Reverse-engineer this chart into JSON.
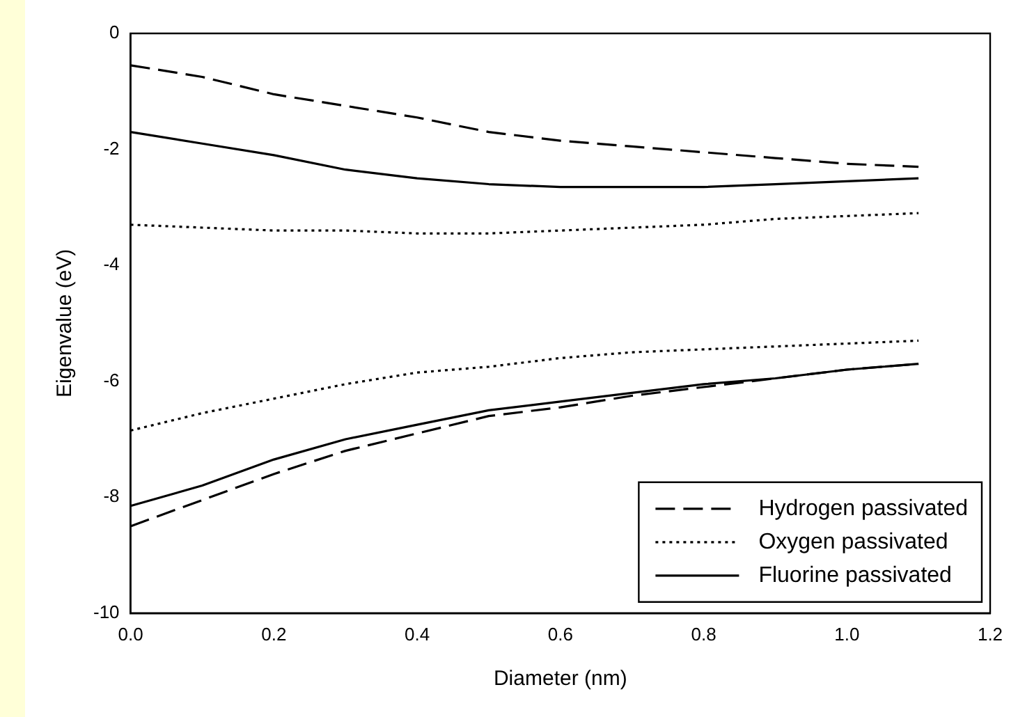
{
  "chart_data": {
    "type": "line",
    "xlabel": "Diameter (nm)",
    "ylabel": "Eigenvalue (eV)",
    "x": [
      0,
      0.1,
      0.2,
      0.3,
      0.4,
      0.5,
      0.6,
      0.7,
      0.8,
      0.9,
      1.0,
      1.1
    ],
    "xlim": [
      0,
      1.2
    ],
    "xticks": [
      {
        "value": 0,
        "label": "0.0"
      },
      0.2,
      0.4,
      0.6,
      0.8,
      {
        "value": 1,
        "label": "1.0"
      },
      1.2
    ],
    "ylim": [
      -10,
      0
    ],
    "yticks": [
      -10,
      -8,
      -6,
      -4,
      -2,
      0
    ],
    "grid": false,
    "legend": "bottom right",
    "marker": "none",
    "series": [
      {
        "name": "Hydrogen passivated",
        "color": "#000000",
        "line_style": "dashed",
        "values": [
          -0.55,
          -0.75,
          -1.05,
          -1.25,
          -1.45,
          -1.7,
          -1.85,
          -1.95,
          -2.05,
          -2.15,
          -2.25,
          -2.3
        ]
      },
      {
        "name": "Oxygen passivated",
        "color": "#000000",
        "line_style": "dotted",
        "values": [
          -3.3,
          -3.35,
          -3.4,
          -3.4,
          -3.45,
          -3.45,
          -3.4,
          -3.35,
          -3.3,
          -3.2,
          -3.15,
          -3.1
        ]
      },
      {
        "name": "Fluorine passivated",
        "color": "#000000",
        "line_style": "solid",
        "values": [
          -1.7,
          -1.9,
          -2.1,
          -2.35,
          -2.5,
          -2.6,
          -2.65,
          -2.65,
          -2.65,
          -2.6,
          -2.55,
          -2.5
        ]
      },
      {
        "color": "#000000",
        "line_style": "dashed",
        "values": [
          -8.5,
          -8.05,
          -7.6,
          -7.2,
          -6.9,
          -6.6,
          -6.45,
          -6.25,
          -6.1,
          -5.95,
          -5.8,
          -5.7
        ]
      },
      {
        "color": "#000000",
        "line_style": "dotted",
        "values": [
          -6.85,
          -6.55,
          -6.3,
          -6.05,
          -5.85,
          -5.75,
          -5.6,
          -5.5,
          -5.45,
          -5.4,
          -5.35,
          -5.3
        ]
      },
      {
        "color": "#000000",
        "line_style": "solid",
        "values": [
          -8.15,
          -7.8,
          -7.35,
          -7.0,
          -6.75,
          -6.5,
          -6.35,
          -6.2,
          -6.05,
          -5.95,
          -5.8,
          -5.7
        ]
      }
    ]
  }
}
